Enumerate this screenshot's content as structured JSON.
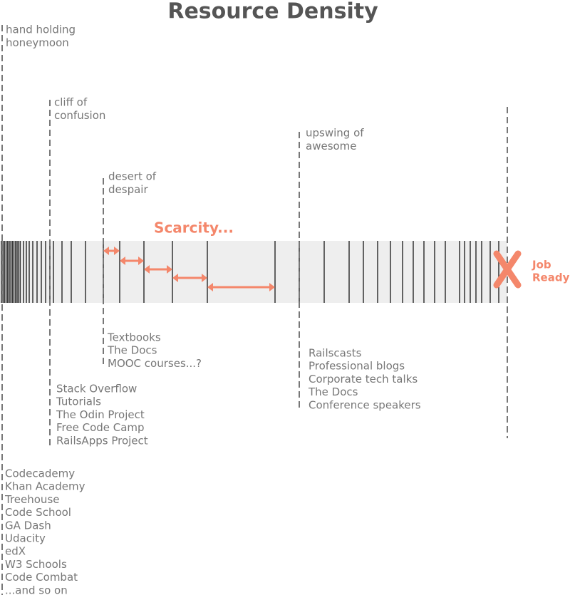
{
  "title": "Resource Density",
  "phases": [
    {
      "label": [
        "hand holding",
        "honeymoon"
      ],
      "resources": [
        "Codecademy",
        "Khan Academy",
        "Treehouse",
        "Code School",
        "GA Dash",
        "Udacity",
        "edX",
        "W3 Schools",
        "Code Combat",
        "...and so on"
      ]
    },
    {
      "label": [
        "cliff of",
        "confusion"
      ],
      "resources": [
        "Stack Overflow",
        "Tutorials",
        "The Odin Project",
        "Free Code Camp",
        "RailsApps Project"
      ]
    },
    {
      "label": [
        "desert of",
        "despair"
      ],
      "resources": [
        "Textbooks",
        "The Docs",
        "MOOC courses...?"
      ]
    },
    {
      "label": [
        "upswing of",
        "awesome"
      ],
      "resources": [
        "Railscasts",
        "Professional blogs",
        "Corporate tech talks",
        "The Docs",
        "Conference speakers"
      ]
    }
  ],
  "scarcity": "Scarcity...",
  "job_ready": [
    "Job",
    "Ready"
  ]
}
